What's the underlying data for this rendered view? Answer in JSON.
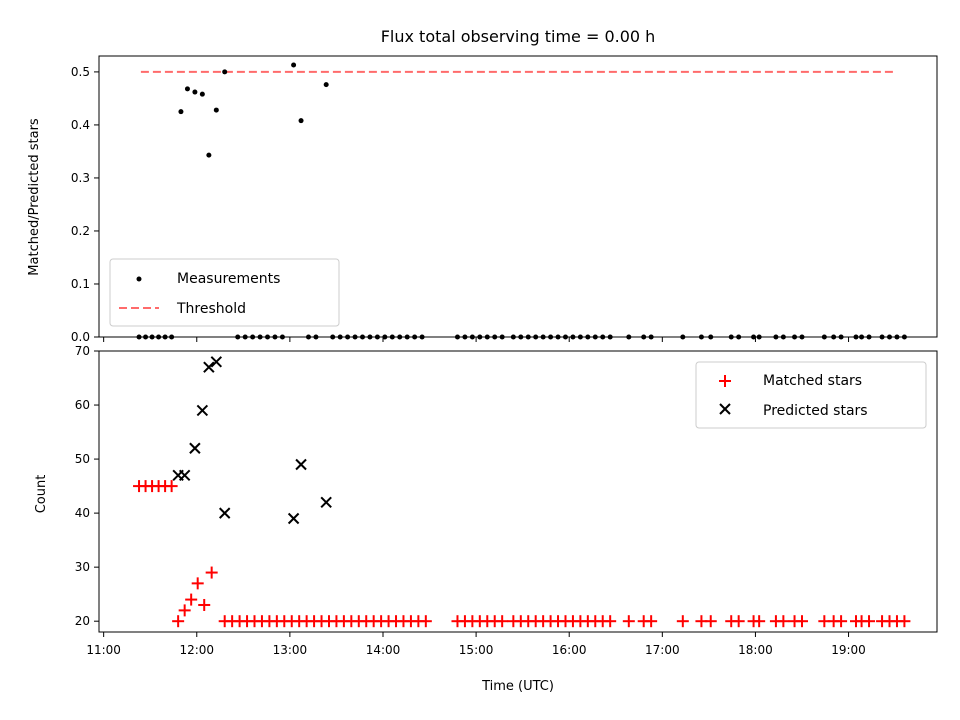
{
  "chart_data": [
    {
      "type": "scatter",
      "title": "Flux total observing time = 0.00 h",
      "xlabel": "",
      "ylabel": "Matched/Predicted stars",
      "xlim": [
        10.95,
        19.95
      ],
      "ylim": [
        0,
        0.53
      ],
      "yticks": [
        "0.0",
        "0.1",
        "0.2",
        "0.3",
        "0.4",
        "0.5"
      ],
      "legend": {
        "position": "lower-left",
        "entries": [
          "Measurements",
          "Threshold"
        ]
      },
      "series": [
        {
          "name": "Measurements",
          "marker": "dot",
          "color": "#000000",
          "points": [
            [
              11.83,
              0.425
            ],
            [
              11.9,
              0.468
            ],
            [
              11.98,
              0.462
            ],
            [
              12.06,
              0.458
            ],
            [
              12.13,
              0.343
            ],
            [
              12.21,
              0.428
            ],
            [
              12.3,
              0.5
            ],
            [
              13.04,
              0.513
            ],
            [
              13.12,
              0.408
            ],
            [
              13.39,
              0.476
            ],
            [
              11.38,
              0
            ],
            [
              11.45,
              0
            ],
            [
              11.52,
              0
            ],
            [
              11.59,
              0
            ],
            [
              11.66,
              0
            ],
            [
              11.73,
              0
            ],
            [
              12.44,
              0
            ],
            [
              12.52,
              0
            ],
            [
              12.6,
              0
            ],
            [
              12.68,
              0
            ],
            [
              12.76,
              0
            ],
            [
              12.84,
              0
            ],
            [
              12.92,
              0
            ],
            [
              13.2,
              0
            ],
            [
              13.28,
              0
            ],
            [
              13.46,
              0
            ],
            [
              13.54,
              0
            ],
            [
              13.62,
              0
            ],
            [
              13.7,
              0
            ],
            [
              13.78,
              0
            ],
            [
              13.86,
              0
            ],
            [
              13.94,
              0
            ],
            [
              14.02,
              0
            ],
            [
              14.1,
              0
            ],
            [
              14.18,
              0
            ],
            [
              14.26,
              0
            ],
            [
              14.34,
              0
            ],
            [
              14.42,
              0
            ],
            [
              14.8,
              0
            ],
            [
              14.88,
              0
            ],
            [
              14.96,
              0
            ],
            [
              15.04,
              0
            ],
            [
              15.12,
              0
            ],
            [
              15.2,
              0
            ],
            [
              15.28,
              0
            ],
            [
              15.4,
              0
            ],
            [
              15.48,
              0
            ],
            [
              15.56,
              0
            ],
            [
              15.64,
              0
            ],
            [
              15.72,
              0
            ],
            [
              15.8,
              0
            ],
            [
              15.88,
              0
            ],
            [
              15.96,
              0
            ],
            [
              16.04,
              0
            ],
            [
              16.12,
              0
            ],
            [
              16.2,
              0
            ],
            [
              16.28,
              0
            ],
            [
              16.36,
              0
            ],
            [
              16.44,
              0
            ],
            [
              16.64,
              0
            ],
            [
              16.8,
              0
            ],
            [
              16.88,
              0
            ],
            [
              17.22,
              0
            ],
            [
              17.42,
              0
            ],
            [
              17.52,
              0
            ],
            [
              17.74,
              0
            ],
            [
              17.82,
              0
            ],
            [
              17.98,
              0
            ],
            [
              18.04,
              0
            ],
            [
              18.22,
              0
            ],
            [
              18.3,
              0
            ],
            [
              18.42,
              0
            ],
            [
              18.5,
              0
            ],
            [
              18.74,
              0
            ],
            [
              18.84,
              0
            ],
            [
              18.92,
              0
            ],
            [
              19.08,
              0
            ],
            [
              19.14,
              0
            ],
            [
              19.22,
              0
            ],
            [
              19.36,
              0
            ],
            [
              19.44,
              0
            ],
            [
              19.52,
              0
            ],
            [
              19.6,
              0
            ]
          ]
        },
        {
          "name": "Threshold",
          "style": "dashed-line",
          "color": "#ff6b6b",
          "points": [
            [
              11.4,
              0.5
            ],
            [
              19.5,
              0.5
            ]
          ]
        }
      ]
    },
    {
      "type": "scatter",
      "title": "",
      "xlabel": "Time (UTC)",
      "ylabel": "Count",
      "xlim": [
        10.95,
        19.95
      ],
      "ylim": [
        18,
        70
      ],
      "xticks": [
        "11:00",
        "12:00",
        "13:00",
        "14:00",
        "15:00",
        "16:00",
        "17:00",
        "18:00",
        "19:00"
      ],
      "yticks": [
        "20",
        "30",
        "40",
        "50",
        "60",
        "70"
      ],
      "legend": {
        "position": "top-right",
        "entries": [
          "Matched stars",
          "Predicted stars"
        ]
      },
      "series": [
        {
          "name": "Matched stars",
          "marker": "plus",
          "color": "#ff0000",
          "points": [
            [
              11.38,
              45
            ],
            [
              11.45,
              45
            ],
            [
              11.52,
              45
            ],
            [
              11.59,
              45
            ],
            [
              11.66,
              45
            ],
            [
              11.73,
              45
            ],
            [
              11.8,
              20
            ],
            [
              11.87,
              22
            ],
            [
              11.94,
              24
            ],
            [
              12.01,
              27
            ],
            [
              12.08,
              23
            ],
            [
              12.16,
              29
            ],
            [
              12.3,
              20
            ],
            [
              12.38,
              20
            ],
            [
              12.46,
              20
            ],
            [
              12.54,
              20
            ],
            [
              12.62,
              20
            ],
            [
              12.7,
              20
            ],
            [
              12.78,
              20
            ],
            [
              12.86,
              20
            ],
            [
              12.94,
              20
            ],
            [
              13.02,
              20
            ],
            [
              13.1,
              20
            ],
            [
              13.18,
              20
            ],
            [
              13.26,
              20
            ],
            [
              13.34,
              20
            ],
            [
              13.42,
              20
            ],
            [
              13.5,
              20
            ],
            [
              13.58,
              20
            ],
            [
              13.66,
              20
            ],
            [
              13.74,
              20
            ],
            [
              13.82,
              20
            ],
            [
              13.9,
              20
            ],
            [
              13.98,
              20
            ],
            [
              14.06,
              20
            ],
            [
              14.14,
              20
            ],
            [
              14.22,
              20
            ],
            [
              14.3,
              20
            ],
            [
              14.38,
              20
            ],
            [
              14.46,
              20
            ],
            [
              14.8,
              20
            ],
            [
              14.88,
              20
            ],
            [
              14.96,
              20
            ],
            [
              15.04,
              20
            ],
            [
              15.12,
              20
            ],
            [
              15.2,
              20
            ],
            [
              15.28,
              20
            ],
            [
              15.4,
              20
            ],
            [
              15.48,
              20
            ],
            [
              15.56,
              20
            ],
            [
              15.64,
              20
            ],
            [
              15.72,
              20
            ],
            [
              15.8,
              20
            ],
            [
              15.88,
              20
            ],
            [
              15.96,
              20
            ],
            [
              16.04,
              20
            ],
            [
              16.12,
              20
            ],
            [
              16.2,
              20
            ],
            [
              16.28,
              20
            ],
            [
              16.36,
              20
            ],
            [
              16.44,
              20
            ],
            [
              16.64,
              20
            ],
            [
              16.8,
              20
            ],
            [
              16.88,
              20
            ],
            [
              17.22,
              20
            ],
            [
              17.42,
              20
            ],
            [
              17.52,
              20
            ],
            [
              17.74,
              20
            ],
            [
              17.82,
              20
            ],
            [
              17.98,
              20
            ],
            [
              18.04,
              20
            ],
            [
              18.22,
              20
            ],
            [
              18.3,
              20
            ],
            [
              18.42,
              20
            ],
            [
              18.5,
              20
            ],
            [
              18.74,
              20
            ],
            [
              18.84,
              20
            ],
            [
              18.92,
              20
            ],
            [
              19.08,
              20
            ],
            [
              19.14,
              20
            ],
            [
              19.22,
              20
            ],
            [
              19.36,
              20
            ],
            [
              19.44,
              20
            ],
            [
              19.52,
              20
            ],
            [
              19.6,
              20
            ]
          ]
        },
        {
          "name": "Predicted stars",
          "marker": "x",
          "color": "#000000",
          "points": [
            [
              11.8,
              47
            ],
            [
              11.87,
              47
            ],
            [
              11.98,
              52
            ],
            [
              12.06,
              59
            ],
            [
              12.13,
              67
            ],
            [
              12.21,
              68
            ],
            [
              12.3,
              40
            ],
            [
              13.04,
              39
            ],
            [
              13.12,
              49
            ],
            [
              13.39,
              42
            ]
          ]
        }
      ]
    }
  ]
}
